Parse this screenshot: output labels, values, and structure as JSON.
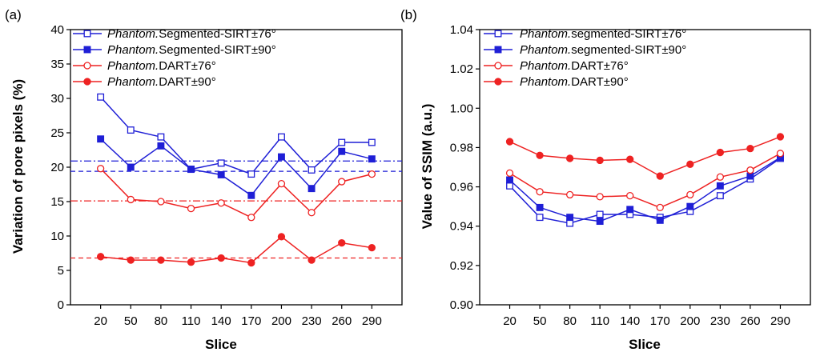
{
  "panels": {
    "a": {
      "label": "(a)"
    },
    "b": {
      "label": "(b)"
    }
  },
  "chart_data": [
    {
      "type": "line",
      "panel": "(a)",
      "title": "",
      "xlabel": "Slice",
      "ylabel": "Variation of pore pixels (%)",
      "categories": [
        "20",
        "50",
        "80",
        "110",
        "140",
        "170",
        "200",
        "230",
        "260",
        "290"
      ],
      "ylim": [
        0,
        40
      ],
      "yticks": [
        "0",
        "5",
        "10",
        "15",
        "20",
        "25",
        "30",
        "35",
        "40"
      ],
      "legend_position": "top-left",
      "series": [
        {
          "name_italic": "Phantom.",
          "name_rest": "Segmented-SIRT±76°",
          "color": "#1f1fd6",
          "marker": "open-square",
          "values": [
            30.2,
            25.4,
            24.4,
            19.7,
            20.6,
            19.0,
            24.4,
            19.6,
            23.6,
            23.6
          ],
          "mean": 20.9,
          "mean_style": "dash-dot"
        },
        {
          "name_italic": "Phantom.",
          "name_rest": "Segmented-SIRT±90°",
          "color": "#1f1fd6",
          "marker": "filled-square",
          "values": [
            24.1,
            20.0,
            23.1,
            19.7,
            18.9,
            15.9,
            21.5,
            16.9,
            22.3,
            21.2
          ],
          "mean": 19.4,
          "mean_style": "dash"
        },
        {
          "name_italic": "Phantom.",
          "name_rest": "DART±76°",
          "color": "#ee2222",
          "marker": "open-circle",
          "values": [
            19.8,
            15.3,
            15.0,
            14.0,
            14.8,
            12.7,
            17.6,
            13.4,
            17.9,
            19.0
          ],
          "mean": 15.1,
          "mean_style": "dash-dot"
        },
        {
          "name_italic": "Phantom.",
          "name_rest": "DART±90°",
          "color": "#ee2222",
          "marker": "filled-circle",
          "values": [
            7.0,
            6.5,
            6.5,
            6.2,
            6.8,
            6.1,
            9.9,
            6.5,
            9.0,
            8.3
          ],
          "mean": 6.8,
          "mean_style": "dash"
        }
      ]
    },
    {
      "type": "line",
      "panel": "(b)",
      "title": "",
      "xlabel": "Slice",
      "ylabel": "Value of SSIM (a.u.)",
      "categories": [
        "20",
        "50",
        "80",
        "110",
        "140",
        "170",
        "200",
        "230",
        "260",
        "290"
      ],
      "ylim": [
        0.9,
        1.04
      ],
      "yticks": [
        "0.90",
        "0.92",
        "0.94",
        "0.96",
        "0.98",
        "1.00",
        "1.02",
        "1.04"
      ],
      "legend_position": "top-left",
      "series": [
        {
          "name_italic": "Phantom.",
          "name_rest": "segmented-SIRT±76°",
          "color": "#1f1fd6",
          "marker": "open-square",
          "values": [
            0.9605,
            0.9445,
            0.9415,
            0.946,
            0.946,
            0.9445,
            0.9475,
            0.9555,
            0.964,
            0.9745
          ]
        },
        {
          "name_italic": "Phantom.",
          "name_rest": "segmented-SIRT±90°",
          "color": "#1f1fd6",
          "marker": "filled-square",
          "values": [
            0.9635,
            0.9495,
            0.9445,
            0.9425,
            0.9485,
            0.943,
            0.95,
            0.9605,
            0.9655,
            0.975
          ]
        },
        {
          "name_italic": "Phantom.",
          "name_rest": "DART±76°",
          "color": "#ee2222",
          "marker": "open-circle",
          "values": [
            0.967,
            0.9575,
            0.956,
            0.955,
            0.9555,
            0.9495,
            0.956,
            0.965,
            0.9685,
            0.977
          ]
        },
        {
          "name_italic": "Phantom.",
          "name_rest": "DART±90°",
          "color": "#ee2222",
          "marker": "filled-circle",
          "values": [
            0.983,
            0.976,
            0.9745,
            0.9735,
            0.974,
            0.9655,
            0.9715,
            0.9775,
            0.9795,
            0.9855
          ]
        }
      ]
    }
  ]
}
